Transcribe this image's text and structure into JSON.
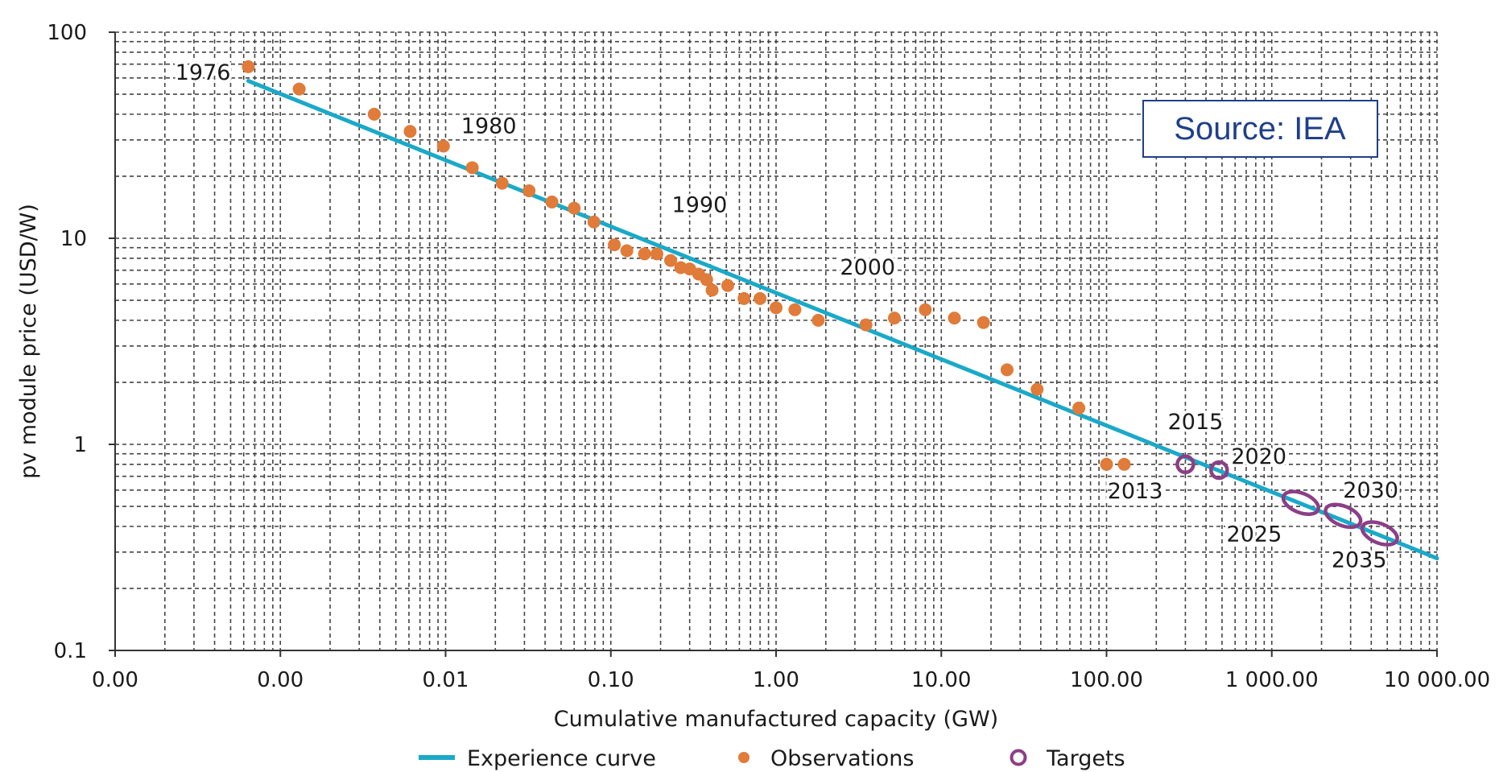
{
  "chart_data": {
    "type": "scatter",
    "xlabel": "Cumulative manufactured capacity (GW)",
    "ylabel": "pv module price (USD/W)",
    "x_scale": "log",
    "y_scale": "log",
    "xlim": [
      0.0001,
      10000
    ],
    "ylim": [
      0.1,
      100
    ],
    "grid": true,
    "x_tick_labels": [
      "0.00",
      "0.00",
      "0.01",
      "0.10",
      "1.00",
      "10.00",
      "100.00",
      "1 000.00",
      "10 000.00"
    ],
    "y_tick_labels": [
      "0.1",
      "1",
      "10",
      "100"
    ],
    "annotation_box": "Source: IEA",
    "legend": [
      {
        "label": "Experience curve",
        "kind": "line",
        "color": "#1aa9c9"
      },
      {
        "label": "Observations",
        "kind": "dot",
        "color": "#e07b39"
      },
      {
        "label": "Targets",
        "kind": "ring",
        "color": "#8b3f86"
      }
    ],
    "series": [
      {
        "name": "Experience curve",
        "type": "line",
        "color": "#1aa9c9",
        "points": [
          [
            0.00064,
            58
          ],
          [
            10000,
            0.28
          ]
        ]
      },
      {
        "name": "Observations",
        "type": "scatter",
        "color": "#e07b39",
        "points": [
          [
            0.00064,
            68
          ],
          [
            0.0013,
            53
          ],
          [
            0.0037,
            40
          ],
          [
            0.0061,
            33
          ],
          [
            0.0097,
            28
          ],
          [
            0.0145,
            22
          ],
          [
            0.022,
            18.5
          ],
          [
            0.032,
            17
          ],
          [
            0.044,
            15
          ],
          [
            0.06,
            14
          ],
          [
            0.079,
            12
          ],
          [
            0.105,
            9.3
          ],
          [
            0.125,
            8.7
          ],
          [
            0.16,
            8.4
          ],
          [
            0.19,
            8.4
          ],
          [
            0.23,
            7.8
          ],
          [
            0.265,
            7.2
          ],
          [
            0.3,
            7.1
          ],
          [
            0.34,
            6.7
          ],
          [
            0.38,
            6.3
          ],
          [
            0.41,
            5.6
          ],
          [
            0.51,
            5.9
          ],
          [
            0.64,
            5.1
          ],
          [
            0.8,
            5.1
          ],
          [
            1.0,
            4.6
          ],
          [
            1.3,
            4.5
          ],
          [
            1.8,
            4.0
          ],
          [
            3.5,
            3.8
          ],
          [
            5.2,
            4.1
          ],
          [
            8.0,
            4.5
          ],
          [
            12,
            4.1
          ],
          [
            18,
            3.9
          ],
          [
            25,
            2.3
          ],
          [
            38,
            1.85
          ],
          [
            68,
            1.5
          ],
          [
            100,
            0.8
          ],
          [
            128,
            0.8
          ]
        ]
      },
      {
        "name": "Targets",
        "type": "scatter",
        "color": "#8b3f86",
        "points": [
          [
            300,
            0.8
          ],
          [
            480,
            0.75
          ],
          [
            1500,
            0.52
          ],
          [
            2700,
            0.45
          ],
          [
            4500,
            0.37
          ]
        ]
      }
    ],
    "annotations": [
      {
        "text": "1976",
        "x": 0.00064,
        "y": 68
      },
      {
        "text": "1980",
        "x": 0.0097,
        "y": 28
      },
      {
        "text": "1990",
        "x": 0.2,
        "y": 12
      },
      {
        "text": "2000",
        "x": 1.8,
        "y": 6.5
      },
      {
        "text": "2013",
        "x": 300,
        "y": 0.8
      },
      {
        "text": "2015",
        "x": 480,
        "y": 0.75
      },
      {
        "text": "2020",
        "x": 480,
        "y": 0.75
      },
      {
        "text": "2025",
        "x": 1500,
        "y": 0.52
      },
      {
        "text": "2030",
        "x": 2700,
        "y": 0.45
      },
      {
        "text": "2035",
        "x": 4500,
        "y": 0.37
      }
    ]
  }
}
